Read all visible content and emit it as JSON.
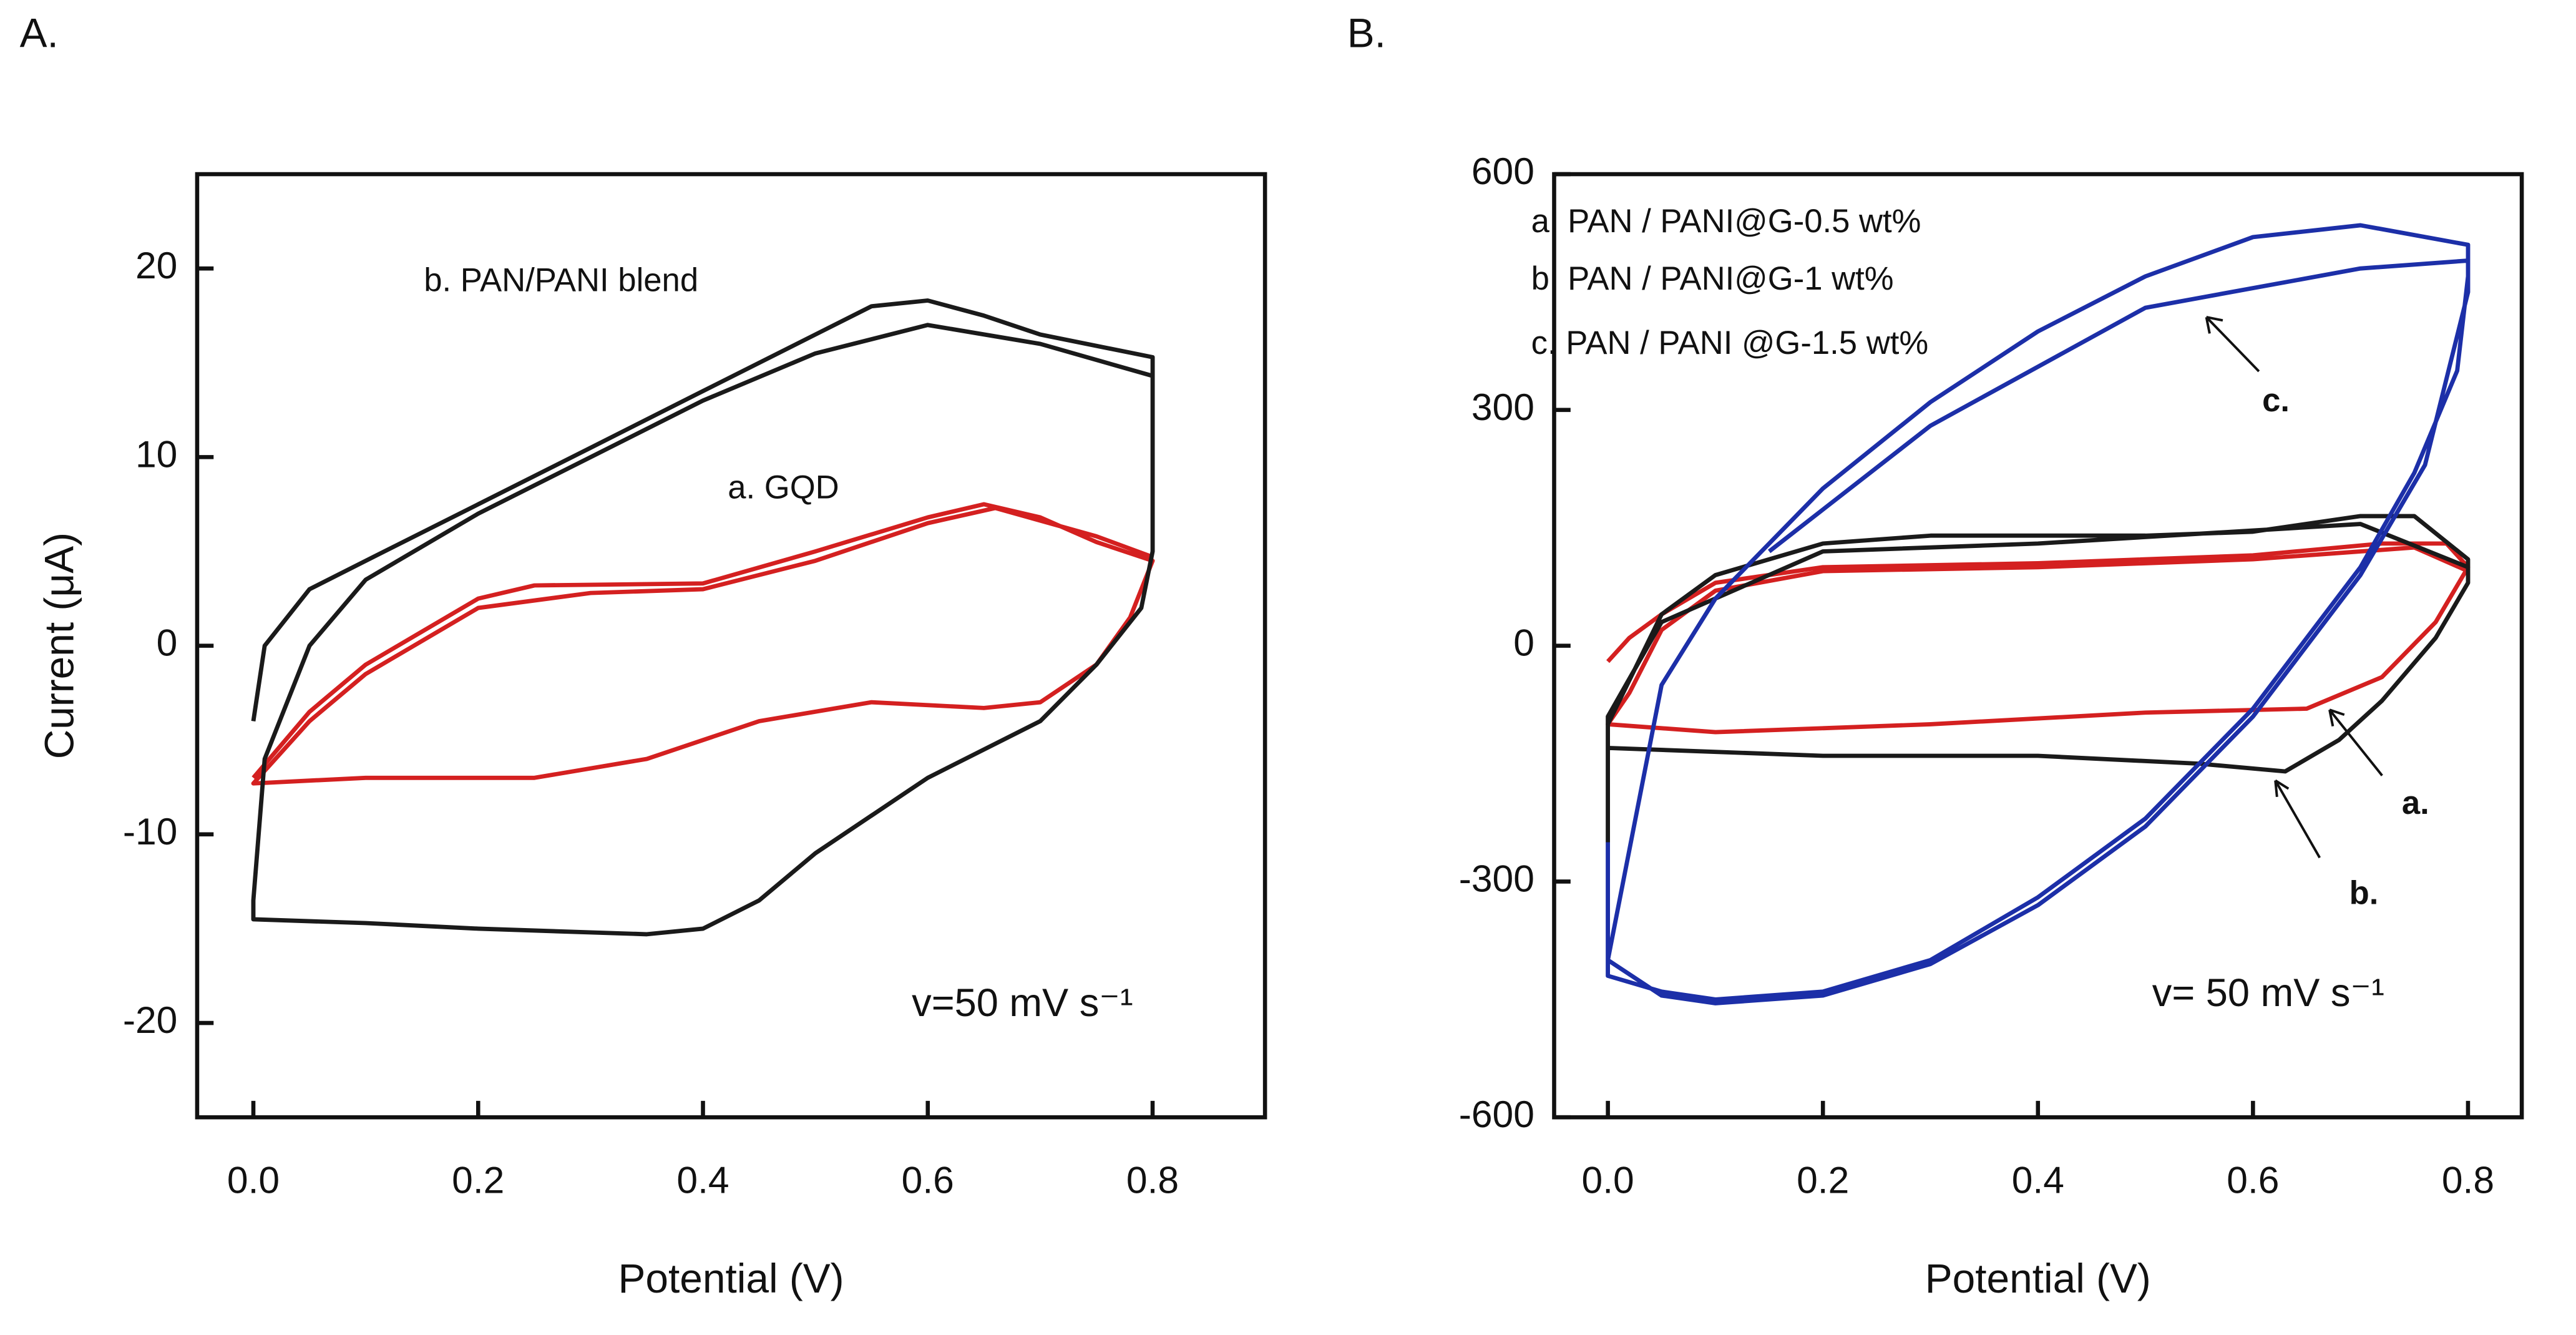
{
  "chart_data": [
    {
      "type": "line",
      "panel": "A.",
      "xlabel": "Potential  (V)",
      "ylabel": "Current (μA)",
      "xlim": [
        -0.05,
        0.9
      ],
      "ylim": [
        -25,
        25
      ],
      "xticks": [
        {
          "value": 0,
          "label": "0.0"
        },
        0.2,
        0.4,
        0.6,
        0.8
      ],
      "yticks": [
        -20,
        -10,
        0,
        10,
        20
      ],
      "annotations": [
        "v=50 mV s⁻¹"
      ],
      "series": [
        {
          "name": "a. GQD",
          "color": "#d42020",
          "x": [
            0,
            0.05,
            0.1,
            0.2,
            0.25,
            0.4,
            0.5,
            0.6,
            0.65,
            0.7,
            0.75,
            0.8,
            0.78,
            0.75,
            0.7,
            0.65,
            0.55,
            0.45,
            0.35,
            0.25,
            0.1,
            0,
            0.05,
            0.1,
            0.2,
            0.3,
            0.4,
            0.5,
            0.6,
            0.66,
            0.75,
            0.8
          ],
          "values": [
            -7,
            -3.5,
            -1,
            2.5,
            3.2,
            3.3,
            5,
            6.8,
            7.5,
            6.8,
            5.5,
            4.5,
            1.5,
            -1,
            -3,
            -3.3,
            -3,
            -4,
            -6,
            -7,
            -7,
            -7.3,
            -4,
            -1.5,
            2,
            2.8,
            3,
            4.5,
            6.5,
            7.3,
            5.8,
            4.7
          ]
        },
        {
          "name": "b. PAN/PANI blend",
          "color": "#1a1a1a",
          "x": [
            0,
            0.01,
            0.05,
            0.1,
            0.2,
            0.3,
            0.4,
            0.5,
            0.55,
            0.6,
            0.65,
            0.7,
            0.8,
            0.8,
            0.8,
            0.79,
            0.75,
            0.7,
            0.6,
            0.5,
            0.45,
            0.4,
            0.35,
            0.2,
            0.1,
            0,
            0,
            0.01,
            0.05,
            0.1,
            0.2,
            0.3,
            0.4,
            0.5,
            0.6,
            0.7,
            0.8
          ],
          "values": [
            -4,
            0,
            3,
            4.5,
            7.5,
            10.5,
            13.5,
            16.5,
            18,
            18.3,
            17.5,
            16.5,
            15.3,
            14,
            5,
            2,
            -1,
            -4,
            -7,
            -11,
            -13.5,
            -15,
            -15.3,
            -15,
            -14.7,
            -14.5,
            -13.5,
            -6,
            0,
            3.5,
            7,
            10,
            13,
            15.5,
            17,
            16,
            14.3
          ]
        }
      ]
    },
    {
      "type": "line",
      "panel": "B.",
      "xlabel": "Potential  (V)",
      "xlim": [
        -0.05,
        0.85
      ],
      "ylim": [
        -600,
        600
      ],
      "xticks": [
        {
          "value": 0,
          "label": "0.0"
        },
        0.2,
        0.4,
        0.6,
        0.8
      ],
      "yticks": [
        -600,
        -300,
        0,
        300,
        600
      ],
      "annotations": [
        "v= 50 mV s⁻¹",
        "a.",
        "b.",
        "c."
      ],
      "series": [
        {
          "name": "a. PAN / PANI@G-0.5 wt%",
          "color": "#d42020",
          "x": [
            0,
            0.02,
            0.05,
            0.1,
            0.2,
            0.4,
            0.6,
            0.72,
            0.78,
            0.8,
            0.77,
            0.72,
            0.65,
            0.5,
            0.3,
            0.1,
            0,
            0.02,
            0.05,
            0.1,
            0.2,
            0.4,
            0.6,
            0.75,
            0.8
          ],
          "values": [
            -20,
            10,
            40,
            80,
            100,
            105,
            115,
            130,
            130,
            100,
            30,
            -40,
            -80,
            -85,
            -100,
            -110,
            -100,
            -60,
            20,
            70,
            95,
            100,
            110,
            125,
            95
          ]
        },
        {
          "name": "b. PAN / PANI@G-1 wt%",
          "color": "#1a1a1a",
          "x": [
            0,
            0,
            0.05,
            0.1,
            0.2,
            0.3,
            0.5,
            0.6,
            0.7,
            0.75,
            0.8,
            0.8,
            0.77,
            0.72,
            0.68,
            0.63,
            0.55,
            0.4,
            0.2,
            0,
            0,
            0.05,
            0.2,
            0.4,
            0.7,
            0.8
          ],
          "values": [
            -250,
            -100,
            40,
            90,
            130,
            140,
            140,
            145,
            165,
            165,
            110,
            80,
            10,
            -70,
            -120,
            -160,
            -150,
            -140,
            -140,
            -130,
            -90,
            30,
            120,
            130,
            155,
            100
          ]
        },
        {
          "name": "c. PAN / PANI @G-1.5 wt%",
          "color": "#1c2fa8",
          "x": [
            0,
            0,
            0.05,
            0.1,
            0.2,
            0.3,
            0.4,
            0.5,
            0.6,
            0.7,
            0.75,
            0.79,
            0.8,
            0.8,
            0.7,
            0.6,
            0.5,
            0.4,
            0.3,
            0.2,
            0.1,
            0.05,
            0,
            0.05,
            0.1,
            0.2,
            0.3,
            0.4,
            0.5,
            0.6,
            0.7,
            0.76,
            0.8,
            0.8,
            0.7,
            0.5,
            0.3,
            0.15
          ],
          "values": [
            -250,
            -420,
            -440,
            -450,
            -440,
            -400,
            -320,
            -220,
            -80,
            100,
            220,
            350,
            470,
            510,
            535,
            520,
            470,
            400,
            310,
            200,
            60,
            -50,
            -400,
            -445,
            -455,
            -445,
            -405,
            -330,
            -230,
            -90,
            90,
            230,
            450,
            490,
            480,
            430,
            280,
            120
          ]
        }
      ]
    }
  ]
}
